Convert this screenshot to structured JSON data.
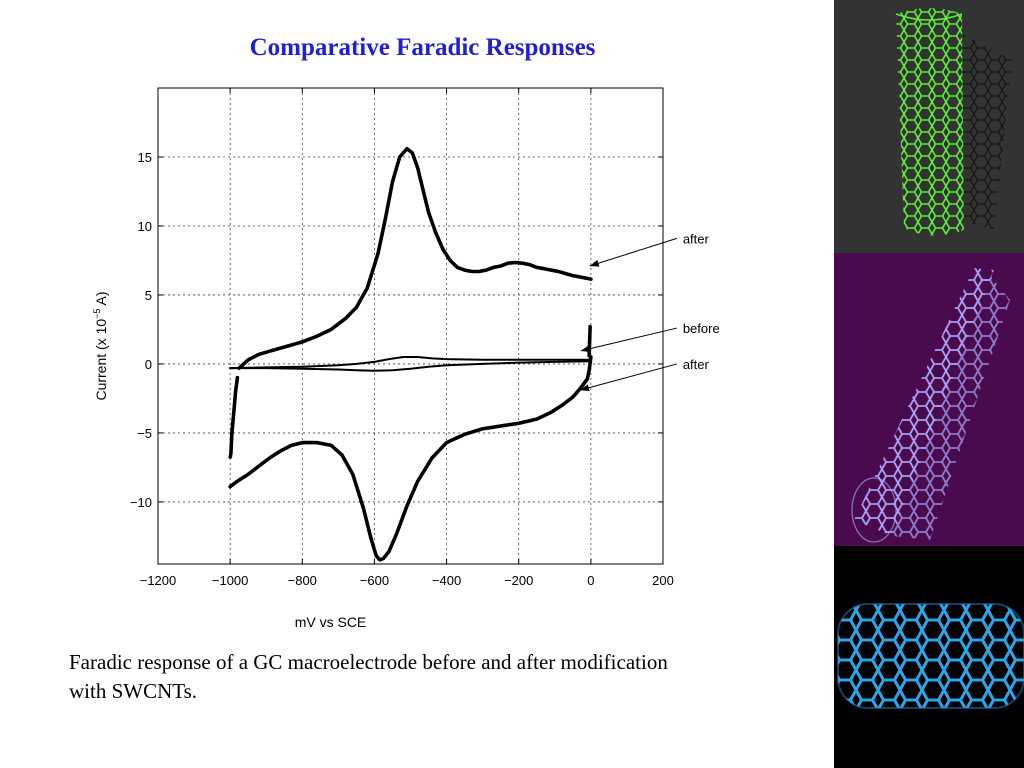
{
  "slide": {
    "title": "Comparative Faradic Responses",
    "caption": "Faradic response of a GC macroelectrode before and after modification with SWCNTs."
  },
  "chart_data": {
    "type": "line",
    "title": "",
    "xlabel": "mV vs SCE",
    "ylabel_main": "Current (x 10",
    "ylabel_exp": "−5",
    "ylabel_tail": " A)",
    "xlim": [
      -1200,
      200
    ],
    "ylim": [
      -14.5,
      20
    ],
    "grid": true,
    "x_ticks": [
      -1200,
      -1000,
      -800,
      -600,
      -400,
      -200,
      0,
      200
    ],
    "y_ticks": [
      -10,
      -5,
      0,
      5,
      10,
      15
    ],
    "x_tick_labels": [
      "−1200",
      "−1000",
      "−800",
      "−600",
      "−400",
      "−200",
      "0",
      "200"
    ],
    "y_tick_labels": [
      "−10",
      "−5",
      "0",
      "5",
      "10",
      "15"
    ],
    "series": [
      {
        "name": "after",
        "style": "dotted-thick",
        "x": [
          -975,
          -950,
          -920,
          -880,
          -840,
          -800,
          -760,
          -720,
          -680,
          -650,
          -620,
          -590,
          -570,
          -550,
          -530,
          -510,
          -495,
          -480,
          -465,
          -450,
          -430,
          -410,
          -390,
          -370,
          -350,
          -330,
          -310,
          -290,
          -270,
          -250,
          -230,
          -210,
          -190,
          -170,
          -150,
          -130,
          -110,
          -90,
          -70,
          -50,
          -30,
          -10,
          0
        ],
        "y": [
          -0.3,
          0.3,
          0.7,
          1.0,
          1.3,
          1.6,
          2.0,
          2.5,
          3.3,
          4.1,
          5.5,
          8.0,
          10.5,
          13.2,
          15.0,
          15.6,
          15.3,
          14.2,
          12.6,
          11.0,
          9.5,
          8.3,
          7.5,
          7.0,
          6.8,
          6.7,
          6.7,
          6.8,
          7.0,
          7.1,
          7.3,
          7.35,
          7.3,
          7.2,
          7.0,
          6.9,
          6.8,
          6.7,
          6.55,
          6.4,
          6.3,
          6.2,
          6.15
        ]
      },
      {
        "name": "after",
        "style": "dotted-thick",
        "x": [
          0,
          -5,
          -10,
          -30,
          -50,
          -80,
          -110,
          -150,
          -200,
          -250,
          -300,
          -350,
          -400,
          -440,
          -480,
          -510,
          -540,
          -560,
          -575,
          -585,
          -595,
          -610,
          -630,
          -660,
          -690,
          -720,
          -760,
          -800,
          -830,
          -860,
          -890,
          -920,
          -950,
          -980,
          -1000
        ],
        "y": [
          0.5,
          -0.5,
          -1.1,
          -1.8,
          -2.4,
          -3.0,
          -3.5,
          -4.0,
          -4.3,
          -4.5,
          -4.7,
          -5.1,
          -5.7,
          -6.8,
          -8.5,
          -10.3,
          -12.4,
          -13.6,
          -14.1,
          -14.2,
          -13.9,
          -12.6,
          -10.5,
          -8.0,
          -6.6,
          -5.9,
          -5.7,
          -5.7,
          -5.9,
          -6.3,
          -6.8,
          -7.4,
          -8.0,
          -8.5,
          -8.9
        ]
      },
      {
        "name": "",
        "style": "dotted-thick",
        "x": [
          -980,
          -985,
          -990,
          -995,
          -998,
          -1000
        ],
        "y": [
          -1.0,
          -2.0,
          -3.5,
          -5.0,
          -6.5,
          -6.8
        ]
      },
      {
        "name": "before",
        "style": "solid",
        "x": [
          -1000,
          -900,
          -800,
          -700,
          -650,
          -600,
          -560,
          -520,
          -480,
          -440,
          -400,
          -300,
          -200,
          -100,
          0
        ],
        "y": [
          -0.3,
          -0.25,
          -0.2,
          -0.1,
          0.0,
          0.15,
          0.35,
          0.5,
          0.5,
          0.4,
          0.35,
          0.3,
          0.3,
          0.3,
          0.3
        ]
      },
      {
        "name": "",
        "style": "solid",
        "x": [
          0,
          -100,
          -200,
          -300,
          -400,
          -450,
          -500,
          -550,
          -600,
          -650,
          -700,
          -800,
          -900,
          -1000
        ],
        "y": [
          0.2,
          0.15,
          0.1,
          0.0,
          -0.1,
          -0.2,
          -0.35,
          -0.45,
          -0.5,
          -0.45,
          -0.4,
          -0.35,
          -0.3,
          -0.3
        ]
      },
      {
        "name": "",
        "style": "dotted-thick",
        "x": [
          -2,
          -3,
          -4,
          -5
        ],
        "y": [
          2.7,
          2.0,
          1.2,
          0.6
        ]
      }
    ],
    "annotations": [
      {
        "text": "after",
        "label_x": 255,
        "label_y": 9.1,
        "arrow_x": -3,
        "arrow_y": 7.1
      },
      {
        "text": "before",
        "label_x": 255,
        "label_y": 2.6,
        "arrow_x": -28,
        "arrow_y": 0.95
      },
      {
        "text": "after",
        "label_x": 255,
        "label_y": 0.0,
        "arrow_x": -30,
        "arrow_y": -1.9
      }
    ]
  },
  "side_panel": {
    "images": [
      "nanotube-green-image",
      "nanotube-purple-image",
      "nanotube-blue-image"
    ]
  },
  "colors": {
    "title": "#1f1fd6",
    "panel_top": "#333333",
    "panel_mid": "#4a0a4e",
    "panel_bottom": "#000000",
    "tube_green": "#5cf034",
    "tube_purple": "#9a94ee",
    "tube_blue": "#2aa6e8"
  }
}
